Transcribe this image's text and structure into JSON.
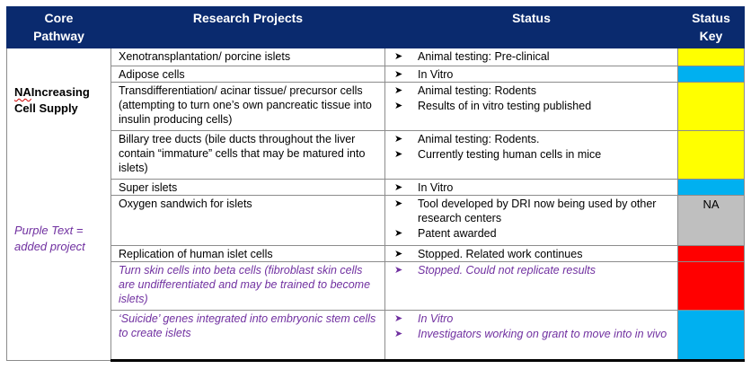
{
  "table": {
    "headers": {
      "core": "Core\nPathway",
      "projects": "Research Projects",
      "status": "Status",
      "key": "Status\nKey"
    },
    "core_pathway": {
      "prefix": "NA",
      "label": "Increasing\nCell Supply",
      "note": "Purple Text =\nadded project"
    },
    "rows": [
      {
        "project": "Xenotransplantation/ porcine islets",
        "status": [
          "Animal testing:  Pre-clinical"
        ],
        "key_color": "#ffff00",
        "key_text": "",
        "purple": false
      },
      {
        "project": "Adipose cells",
        "status": [
          "In Vitro"
        ],
        "key_color": "#00b0f0",
        "key_text": "",
        "purple": false
      },
      {
        "project": "Transdifferentiation/ acinar tissue/ precursor cells (attempting to turn one’s own pancreatic tissue into insulin producing cells)",
        "status": [
          "Animal testing:  Rodents",
          "Results of in vitro testing published"
        ],
        "key_color": "#ffff00",
        "key_text": "",
        "purple": false
      },
      {
        "project": "Billary tree ducts (bile ducts throughout the liver contain “immature” cells that may be matured into islets)",
        "status": [
          "Animal testing:  Rodents.",
          "Currently testing human cells in mice"
        ],
        "key_color": "#ffff00",
        "key_text": "",
        "purple": false
      },
      {
        "project": "Super islets",
        "status": [
          "In Vitro"
        ],
        "key_color": "#00b0f0",
        "key_text": "",
        "purple": false
      },
      {
        "project": "Oxygen sandwich for islets",
        "status": [
          "Tool developed by DRI now being used by other research centers",
          "Patent awarded"
        ],
        "key_color": "#bfbfbf",
        "key_text": "NA",
        "purple": false
      },
      {
        "project": "Replication of human islet cells",
        "status": [
          "Stopped.  Related work continues"
        ],
        "key_color": "#ff0000",
        "key_text": "",
        "purple": false
      },
      {
        "project": "Turn skin cells into beta cells (fibroblast skin cells are undifferentiated and may be trained to become islets)",
        "status": [
          "Stopped.  Could not replicate results"
        ],
        "key_color": "#ff0000",
        "key_text": "",
        "purple": true
      },
      {
        "project": "‘Suicide’ genes integrated into embryonic stem cells to create islets",
        "status": [
          "In Vitro",
          "Investigators working on grant to move into in vivo"
        ],
        "key_color": "#00b0f0",
        "key_text": "",
        "purple": true
      }
    ],
    "bullet_icon": "arrowhead-bullet-icon"
  }
}
